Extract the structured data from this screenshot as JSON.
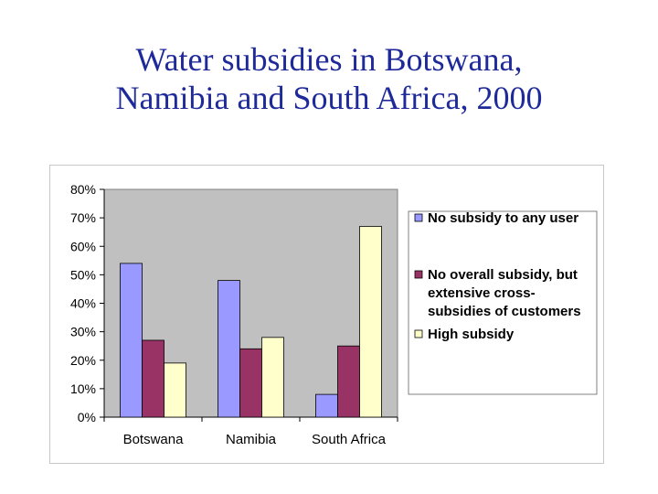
{
  "slide": {
    "title_line1": "Water subsidies in Botswana,",
    "title_line2": "Namibia and South Africa, 2000"
  },
  "chart_data": {
    "type": "bar",
    "title": "Water subsidies in Botswana, Namibia and South Africa, 2000",
    "xlabel": "",
    "ylabel": "",
    "ylim": [
      0,
      80
    ],
    "yticks": [
      0,
      10,
      20,
      30,
      40,
      50,
      60,
      70,
      80
    ],
    "ytick_labels": [
      "0%",
      "10%",
      "20%",
      "30%",
      "40%",
      "50%",
      "60%",
      "70%",
      "80%"
    ],
    "categories": [
      "Botswana",
      "Namibia",
      "South Africa"
    ],
    "grid": false,
    "legend_position": "right",
    "series": [
      {
        "name": "No subsidy to any user",
        "legend_lines": [
          "No subsidy to any user"
        ],
        "color": "#9999ff",
        "values": [
          54,
          48,
          8
        ]
      },
      {
        "name": "No overall subsidy, but extensive cross-subsidies of customers",
        "legend_lines": [
          "No overall subsidy, but",
          "extensive cross-",
          "subsidies of customers"
        ],
        "color": "#993366",
        "values": [
          27,
          24,
          25
        ]
      },
      {
        "name": "High subsidy",
        "legend_lines": [
          "High subsidy"
        ],
        "color": "#ffffcc",
        "values": [
          19,
          28,
          67
        ]
      }
    ],
    "plot_background": "#c0c0c0"
  }
}
